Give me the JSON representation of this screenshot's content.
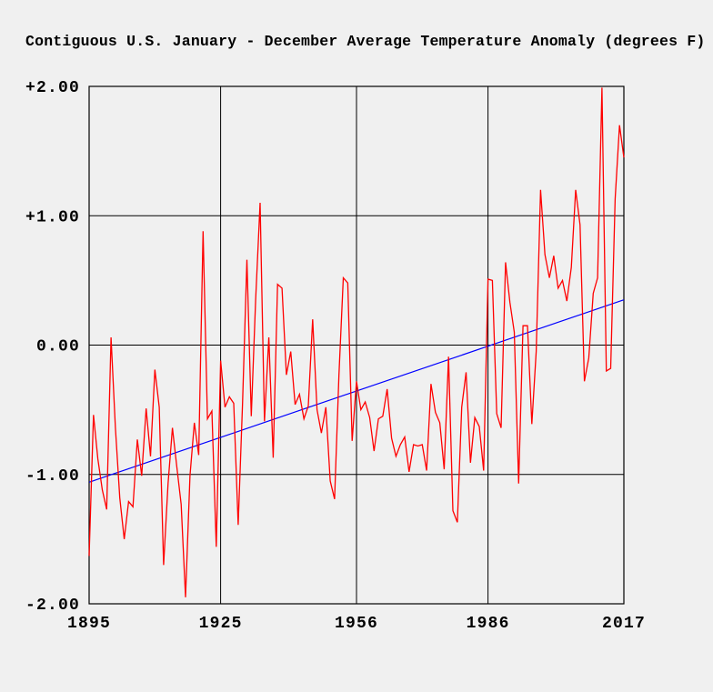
{
  "page": {
    "background_color": "#f0f0f0",
    "text_color": "#000000"
  },
  "chart_data": {
    "type": "line",
    "title": "Contiguous U.S. January - December Average Temperature Anomaly (degrees F)",
    "xlabel": "",
    "ylabel": "",
    "grid": true,
    "legend": "none",
    "xlim": [
      1895,
      2017
    ],
    "ylim": [
      -2,
      2
    ],
    "x_ticks": [
      1895,
      1925,
      1956,
      1986,
      2017
    ],
    "y_ticks": [
      {
        "label": "+2.00",
        "value": 2
      },
      {
        "label": "+1.00",
        "value": 1
      },
      {
        "label": "0.00",
        "value": 0
      },
      {
        "label": "-1.00",
        "value": -1
      },
      {
        "label": "-2.00",
        "value": -2
      }
    ],
    "x_start": 1895,
    "x_step": 1,
    "series": [
      {
        "name": "annual_temperature_anomaly",
        "color": "#ff0000",
        "values": [
          -1.63,
          -0.54,
          -0.88,
          -1.12,
          -1.27,
          0.06,
          -0.64,
          -1.18,
          -1.5,
          -1.21,
          -1.25,
          -0.73,
          -1.01,
          -0.49,
          -0.86,
          -0.19,
          -0.48,
          -1.7,
          -1.07,
          -0.64,
          -0.94,
          -1.23,
          -1.95,
          -1.01,
          -0.6,
          -0.85,
          0.88,
          -0.57,
          -0.51,
          -1.56,
          -0.12,
          -0.48,
          -0.4,
          -0.45,
          -1.39,
          -0.45,
          0.66,
          -0.55,
          0.35,
          1.1,
          -0.59,
          0.06,
          -0.87,
          0.47,
          0.44,
          -0.23,
          -0.05,
          -0.46,
          -0.38,
          -0.57,
          -0.47,
          0.2,
          -0.5,
          -0.68,
          -0.48,
          -1.05,
          -1.19,
          -0.23,
          0.52,
          0.48,
          -0.74,
          -0.28,
          -0.5,
          -0.44,
          -0.56,
          -0.82,
          -0.57,
          -0.55,
          -0.34,
          -0.72,
          -0.86,
          -0.77,
          -0.71,
          -0.98,
          -0.77,
          -0.78,
          -0.77,
          -0.97,
          -0.3,
          -0.52,
          -0.6,
          -0.96,
          -0.09,
          -1.28,
          -1.37,
          -0.48,
          -0.21,
          -0.91,
          -0.56,
          -0.63,
          -0.97,
          0.51,
          0.5,
          -0.53,
          -0.64,
          0.64,
          0.33,
          0.1,
          -1.07,
          0.15,
          0.15,
          -0.61,
          -0.05,
          1.2,
          0.7,
          0.52,
          0.69,
          0.44,
          0.5,
          0.34,
          0.6,
          1.2,
          0.93,
          -0.28,
          -0.1,
          0.4,
          0.52,
          1.99,
          -0.2,
          -0.18,
          1.13,
          1.7,
          1.45
        ]
      }
    ],
    "trend": {
      "name": "linear_trend",
      "color": "#0000ff",
      "start_year": 1895,
      "start_value": -1.06,
      "end_year": 2017,
      "end_value": 0.35
    }
  }
}
